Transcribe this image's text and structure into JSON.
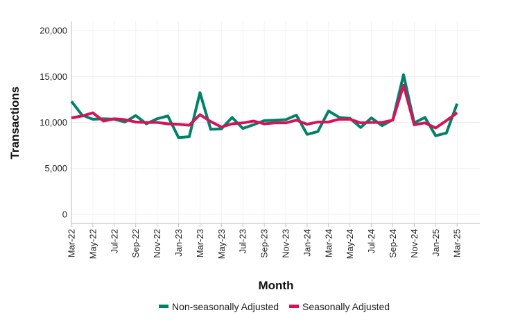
{
  "chart_data": {
    "type": "line",
    "xlabel": "Month",
    "ylabel": "Transactions",
    "ylim": [
      -1000,
      21000
    ],
    "yticks": [
      0,
      5000,
      10000,
      15000,
      20000
    ],
    "ytick_labels": [
      "0",
      "5,000",
      "10,000",
      "15,000",
      "20,000"
    ],
    "x": [
      "Mar-22",
      "Apr-22",
      "May-22",
      "Jun-22",
      "Jul-22",
      "Aug-22",
      "Sep-22",
      "Oct-22",
      "Nov-22",
      "Dec-22",
      "Jan-23",
      "Feb-23",
      "Mar-23",
      "Apr-23",
      "May-23",
      "Jun-23",
      "Jul-23",
      "Aug-23",
      "Sep-23",
      "Oct-23",
      "Nov-23",
      "Dec-23",
      "Jan-24",
      "Feb-24",
      "Mar-24",
      "Apr-24",
      "May-24",
      "Jun-24",
      "Jul-24",
      "Aug-24",
      "Sep-24",
      "Oct-24",
      "Nov-24",
      "Dec-24",
      "Jan-25",
      "Feb-25",
      "Mar-25"
    ],
    "xtick_labels": [
      "Mar-22",
      "May-22",
      "Jul-22",
      "Sep-22",
      "Nov-22",
      "Jan-23",
      "Mar-23",
      "May-23",
      "Jul-23",
      "Sep-23",
      "Nov-23",
      "Jan-24",
      "Mar-24",
      "May-24",
      "Jul-24",
      "Sep-24",
      "Nov-24",
      "Jan-25",
      "Mar-25"
    ],
    "grid": true,
    "legend_position": "bottom",
    "series": [
      {
        "name": "Non-seasonally Adjusted",
        "color": "#00826a",
        "values": [
          12300,
          10800,
          10350,
          10400,
          10350,
          10050,
          10750,
          9850,
          10400,
          10700,
          8350,
          8450,
          13250,
          9250,
          9300,
          10550,
          9350,
          9750,
          10200,
          10250,
          10300,
          10800,
          8700,
          9000,
          11250,
          10550,
          10450,
          9450,
          10500,
          9650,
          10300,
          15200,
          9950,
          10550,
          8550,
          8850,
          12050
        ]
      },
      {
        "name": "Seasonally Adjusted",
        "color": "#d4145a",
        "values": [
          10500,
          10700,
          11050,
          10150,
          10400,
          10300,
          10050,
          10000,
          10000,
          9850,
          9800,
          9700,
          10850,
          10100,
          9500,
          9850,
          9950,
          10150,
          9850,
          9950,
          9950,
          10250,
          9800,
          10050,
          10050,
          10350,
          10350,
          9950,
          10000,
          10000,
          10250,
          14050,
          9750,
          9950,
          9400,
          10200,
          11050
        ]
      }
    ]
  }
}
